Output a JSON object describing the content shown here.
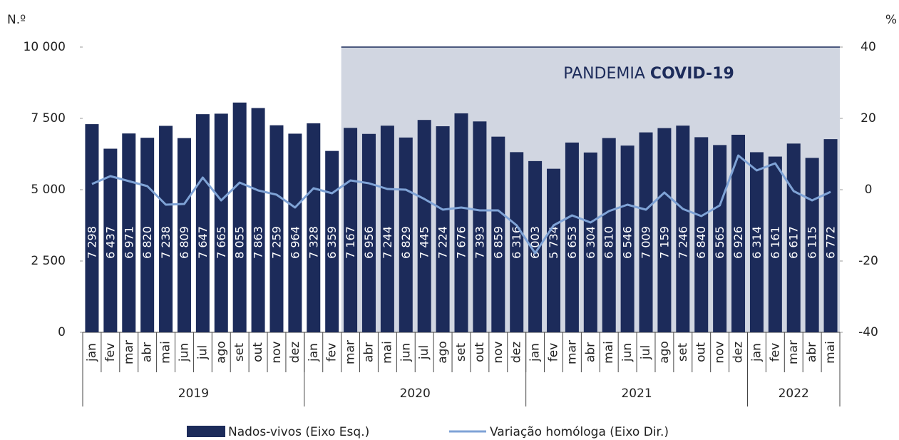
{
  "chart_data": {
    "type": "bar-line",
    "y_label": "N.º",
    "y2_label": "%",
    "annotation": [
      "PANDEMIA",
      "COVID-19"
    ],
    "categories": [
      "jan",
      "fev",
      "mar",
      "abr",
      "mai",
      "jun",
      "jul",
      "ago",
      "set",
      "out",
      "nov",
      "dez",
      "jan",
      "fev",
      "mar",
      "abr",
      "mai",
      "jun",
      "jul",
      "ago",
      "set",
      "out",
      "nov",
      "dez",
      "jan",
      "fev",
      "mar",
      "abr",
      "mai",
      "jun",
      "jul",
      "ago",
      "set",
      "out",
      "nov",
      "dez",
      "jan",
      "fev",
      "mar",
      "abr",
      "mai"
    ],
    "groups": [
      "2019",
      "2020",
      "2021",
      "2022"
    ],
    "series": [
      {
        "name": "Nados-vivos (Eixo Esq.)",
        "color": "#1c2b5a",
        "values": [
          7298,
          6437,
          6971,
          6820,
          7238,
          6809,
          7647,
          7665,
          8055,
          7863,
          7259,
          6964,
          7328,
          6359,
          7167,
          6956,
          7244,
          6829,
          7445,
          7224,
          7676,
          7393,
          6859,
          6316,
          6003,
          5734,
          6653,
          6304,
          6810,
          6546,
          7009,
          7159,
          7246,
          6840,
          6565,
          6926,
          6314,
          6161,
          6617,
          6115,
          6772
        ],
        "value_labels": [
          "7 298",
          "6 437",
          "6 971",
          "6 820",
          "7 238",
          "6 809",
          "7 647",
          "7 665",
          "8 055",
          "7 863",
          "7 259",
          "6 964",
          "7 328",
          "6 359",
          "7 167",
          "6 956",
          "7 244",
          "6 829",
          "7 445",
          "7 224",
          "7 676",
          "7 393",
          "6 859",
          "6 316",
          "6 003",
          "5 734",
          "6 653",
          "6 304",
          "6 810",
          "6 546",
          "7 009",
          "7 159",
          "7 246",
          "6 840",
          "6 565",
          "6 926",
          "6 314",
          "6 161",
          "6 617",
          "6 115",
          "6 772"
        ]
      },
      {
        "name": "Variação homóloga (Eixo Dir.)",
        "color": "#7fa3d6",
        "axis": "y2",
        "values": [
          1.6,
          3.8,
          2.4,
          1.0,
          -4.2,
          -4.0,
          3.4,
          -3.0,
          2.0,
          -0.2,
          -1.4,
          -5.0,
          0.4,
          -1.0,
          2.6,
          1.8,
          0.2,
          0.0,
          -2.6,
          -5.6,
          -5.0,
          -5.8,
          -5.8,
          -10.0,
          -17.8,
          -10.0,
          -7.2,
          -9.2,
          -6.0,
          -4.2,
          -5.6,
          -0.8,
          -5.4,
          -7.4,
          -4.4,
          9.6,
          5.4,
          7.4,
          -0.4,
          -3.0,
          -0.6
        ]
      }
    ],
    "ylim": [
      0,
      10000
    ],
    "yticks": [
      0,
      {
        "value": 2500,
        "label": "2 500"
      },
      {
        "value": 5000,
        "label": "5 000"
      },
      {
        "value": 7500,
        "label": "7 500"
      },
      {
        "value": 10000,
        "label": "10 000"
      }
    ],
    "y2lim": [
      -40,
      40
    ],
    "y2ticks": [
      -40,
      -20,
      0,
      20,
      40
    ]
  }
}
